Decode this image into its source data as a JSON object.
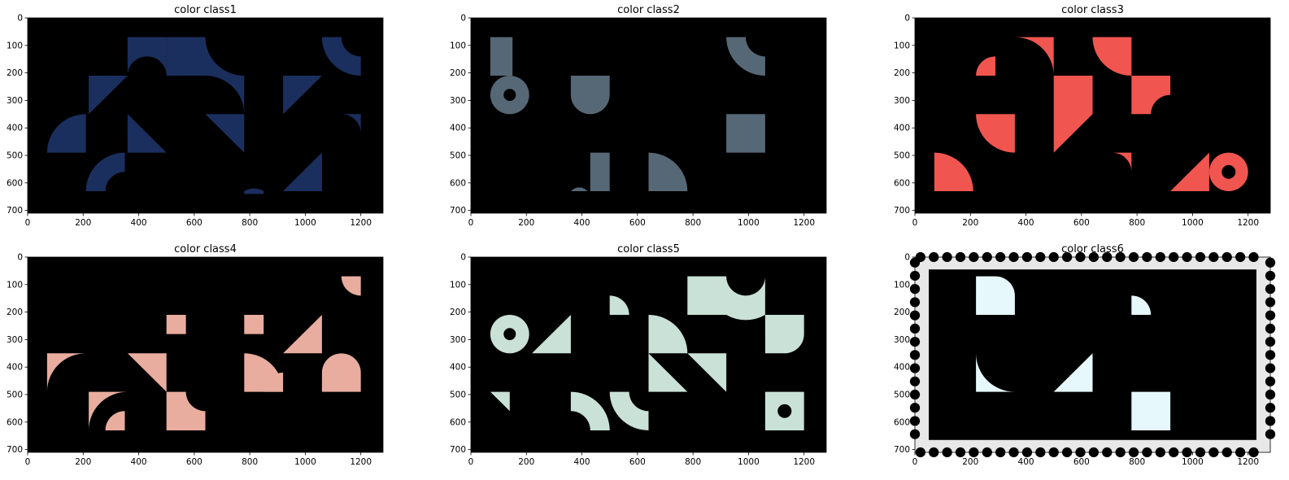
{
  "figure": {
    "panels": [
      {
        "title": "color class1",
        "color": "#1b2f5e",
        "fill_regions": 6
      },
      {
        "title": "color class2",
        "color": "#566775",
        "fill_regions": 7
      },
      {
        "title": "color class3",
        "color": "#f05550",
        "fill_regions": 9
      },
      {
        "title": "color class4",
        "color": "#e8ad9f",
        "fill_regions": 10
      },
      {
        "title": "color class5",
        "color": "#c9e1d6",
        "fill_regions": 10
      },
      {
        "title": "color class6",
        "color": "#e6f8fc",
        "fill_regions": 6,
        "stamp_border": true,
        "stamp_color": "#e8e8e8"
      }
    ]
  },
  "chart_data": [
    {
      "type": "heatmap",
      "title": "color class1",
      "xlim": [
        0,
        1280
      ],
      "ylim": [
        710,
        0
      ],
      "x_ticks": [
        "0",
        "200",
        "400",
        "600",
        "800",
        "1000",
        "1200"
      ],
      "y_ticks": [
        "0",
        "100",
        "200",
        "300",
        "400",
        "500",
        "600",
        "700"
      ],
      "mask_color": "#1b2f5e",
      "background": "#000000"
    },
    {
      "type": "heatmap",
      "title": "color class2",
      "xlim": [
        0,
        1280
      ],
      "ylim": [
        710,
        0
      ],
      "x_ticks": [
        "0",
        "200",
        "400",
        "600",
        "800",
        "1000",
        "1200"
      ],
      "y_ticks": [
        "0",
        "100",
        "200",
        "300",
        "400",
        "500",
        "600",
        "700"
      ],
      "mask_color": "#566775",
      "background": "#000000"
    },
    {
      "type": "heatmap",
      "title": "color class3",
      "xlim": [
        0,
        1280
      ],
      "ylim": [
        710,
        0
      ],
      "x_ticks": [
        "0",
        "200",
        "400",
        "600",
        "800",
        "1000",
        "1200"
      ],
      "y_ticks": [
        "0",
        "100",
        "200",
        "300",
        "400",
        "500",
        "600",
        "700"
      ],
      "mask_color": "#f05550",
      "background": "#000000"
    },
    {
      "type": "heatmap",
      "title": "color class4",
      "xlim": [
        0,
        1280
      ],
      "ylim": [
        710,
        0
      ],
      "x_ticks": [
        "0",
        "200",
        "400",
        "600",
        "800",
        "1000",
        "1200"
      ],
      "y_ticks": [
        "0",
        "100",
        "200",
        "300",
        "400",
        "500",
        "600",
        "700"
      ],
      "mask_color": "#e8ad9f",
      "background": "#000000"
    },
    {
      "type": "heatmap",
      "title": "color class5",
      "xlim": [
        0,
        1280
      ],
      "ylim": [
        710,
        0
      ],
      "x_ticks": [
        "0",
        "200",
        "400",
        "600",
        "800",
        "1000",
        "1200"
      ],
      "y_ticks": [
        "0",
        "100",
        "200",
        "300",
        "400",
        "500",
        "600",
        "700"
      ],
      "mask_color": "#c9e1d6",
      "background": "#000000"
    },
    {
      "type": "heatmap",
      "title": "color class6",
      "xlim": [
        0,
        1280
      ],
      "ylim": [
        710,
        0
      ],
      "x_ticks": [
        "0",
        "200",
        "400",
        "600",
        "800",
        "1000",
        "1200"
      ],
      "y_ticks": [
        "0",
        "100",
        "200",
        "300",
        "400",
        "500",
        "600",
        "700"
      ],
      "mask_color": "#e6f8fc",
      "background": "#000000"
    }
  ]
}
